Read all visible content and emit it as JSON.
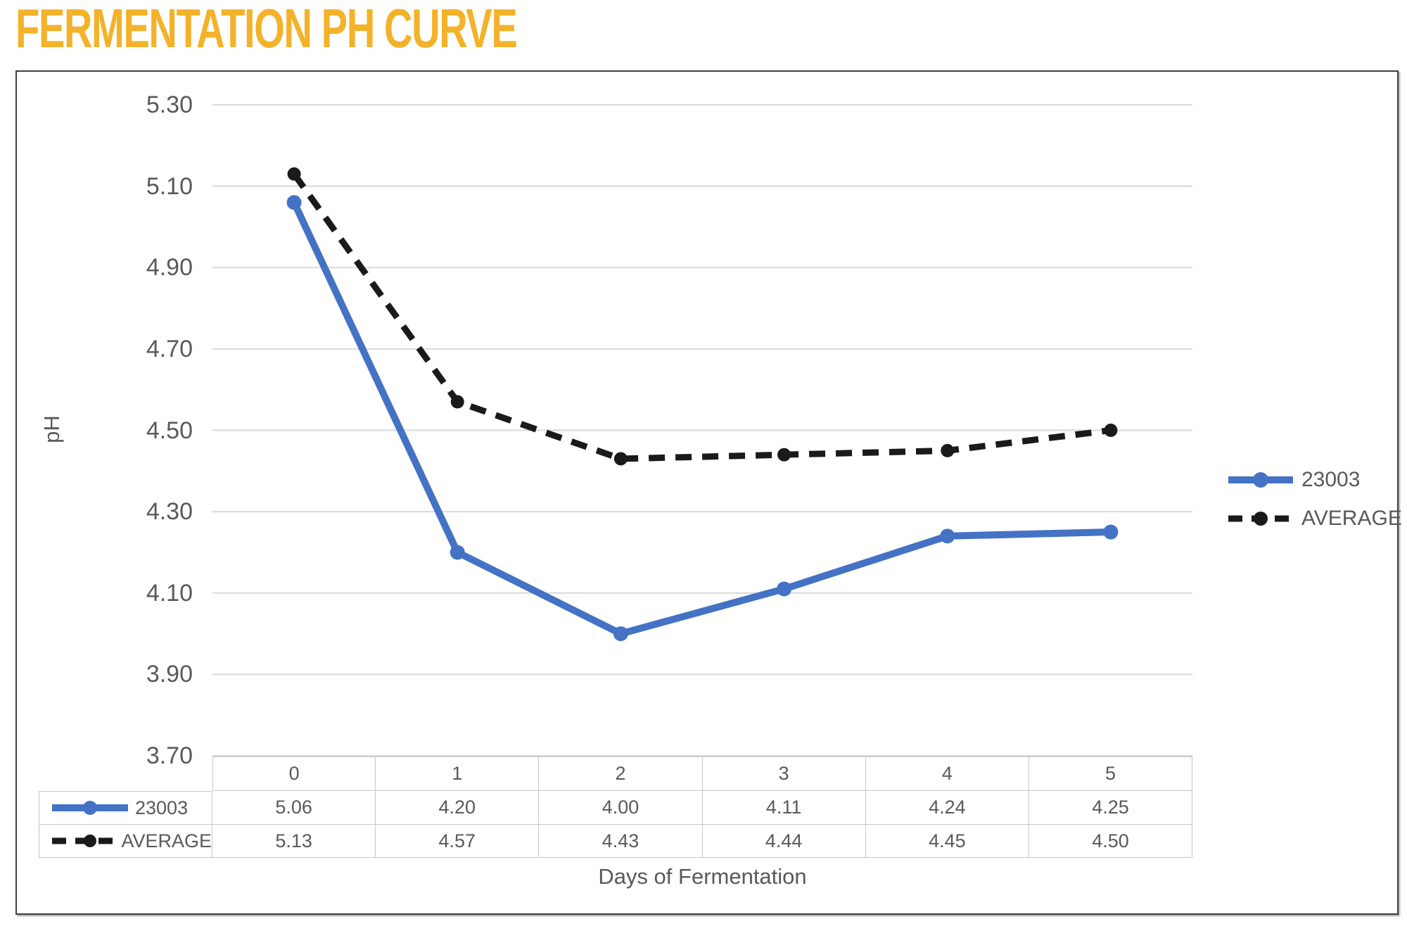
{
  "page": {
    "title": "FERMENTATION PH CURVE"
  },
  "chart_data": {
    "type": "line",
    "title": "FERMENTATION PH CURVE",
    "xlabel": "Days of Fermentation",
    "ylabel": "pH",
    "categories": [
      "0",
      "1",
      "2",
      "3",
      "4",
      "5"
    ],
    "series": [
      {
        "name": "23003",
        "values": [
          5.06,
          4.2,
          4.0,
          4.11,
          4.24,
          4.25
        ],
        "color": "#4472C4",
        "dash": "solid",
        "marker": "circle"
      },
      {
        "name": "AVERAGE",
        "values": [
          5.13,
          4.57,
          4.43,
          4.44,
          4.45,
          4.5
        ],
        "color": "#1A1A1A",
        "dash": "dashed",
        "marker": "circle"
      }
    ],
    "y_ticks": [
      "5.30",
      "5.10",
      "4.90",
      "4.70",
      "4.50",
      "4.30",
      "4.10",
      "3.90",
      "3.70"
    ],
    "ylim": [
      3.7,
      5.3
    ],
    "grid": true,
    "legend_position": "right",
    "data_table": {
      "header": [
        "0",
        "1",
        "2",
        "3",
        "4",
        "5"
      ],
      "rows": [
        {
          "label": "23003",
          "values": [
            "5.06",
            "4.20",
            "4.00",
            "4.11",
            "4.24",
            "4.25"
          ]
        },
        {
          "label": "AVERAGE",
          "values": [
            "5.13",
            "4.57",
            "4.43",
            "4.44",
            "4.45",
            "4.50"
          ]
        }
      ]
    },
    "colors": {
      "title": "#F3B229",
      "series_23003": "#4472C4",
      "series_average": "#1A1A1A",
      "axis_text": "#595959",
      "gridline": "#D9D9D9",
      "table_border": "#C6C6C6",
      "frame_border": "#3F3F3F"
    }
  }
}
